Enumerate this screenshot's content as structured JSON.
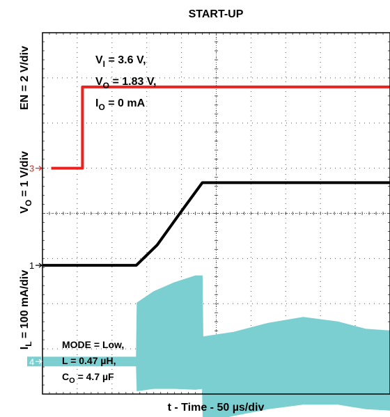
{
  "chart_data": {
    "type": "line",
    "title": "START-UP",
    "xlabel": "t - Time - 50 µs/div",
    "x_divisions": 10,
    "y_divisions": 8,
    "grid": true,
    "channels": [
      {
        "name": "EN",
        "ylabel": "EN = 2 V/div",
        "marker": "3",
        "color": "#e8231f",
        "ground_div": 5.0,
        "volts_per_div": 2,
        "unit": "V",
        "points": [
          [
            0.25,
            0
          ],
          [
            1.15,
            0
          ],
          [
            1.15,
            3.6
          ],
          [
            10.0,
            3.6
          ]
        ]
      },
      {
        "name": "VO",
        "ylabel": "VO = 1 V/div",
        "ylabel_main": "V",
        "ylabel_sub": "O",
        "ylabel_rest": " = 1 V/div",
        "marker": "1",
        "color": "#000000",
        "ground_div": 2.85,
        "volts_per_div": 1,
        "unit": "V",
        "points": [
          [
            0.0,
            0
          ],
          [
            1.15,
            0
          ],
          [
            2.7,
            0
          ],
          [
            3.3,
            0.45
          ],
          [
            4.0,
            1.2
          ],
          [
            4.6,
            1.83
          ],
          [
            10.0,
            1.83
          ]
        ]
      },
      {
        "name": "IL",
        "ylabel": "IL = 100 mA/div",
        "ylabel_main": "I",
        "ylabel_sub": "L",
        "ylabel_rest": " = 100 mA/div",
        "marker": "4",
        "color": "#7ccfd0",
        "ground_div": 0.72,
        "amps_per_div": 100,
        "unit": "mA",
        "envelope": [
          {
            "t": 0.0,
            "max": 10,
            "min": -10
          },
          {
            "t": 2.7,
            "max": 10,
            "min": -10
          },
          {
            "t": 2.72,
            "max": 130,
            "min": -65
          },
          {
            "t": 3.2,
            "max": 155,
            "min": -60
          },
          {
            "t": 3.8,
            "max": 175,
            "min": -60
          },
          {
            "t": 4.4,
            "max": 190,
            "min": -62
          },
          {
            "t": 4.6,
            "max": 190,
            "min": -60
          },
          {
            "t": 4.62,
            "max": 55,
            "min": -135
          },
          {
            "t": 5.5,
            "max": 65,
            "min": -120
          },
          {
            "t": 6.5,
            "max": 85,
            "min": -105
          },
          {
            "t": 7.5,
            "max": 98,
            "min": -95
          },
          {
            "t": 8.5,
            "max": 88,
            "min": -95
          },
          {
            "t": 9.3,
            "max": 72,
            "min": -105
          },
          {
            "t": 10.0,
            "max": 68,
            "min": -108
          }
        ]
      }
    ]
  },
  "annotations": {
    "top": {
      "vi": {
        "main": "V",
        "sub": "I",
        "rest": " = 3.6 V,"
      },
      "vo": {
        "main": "V",
        "sub": "O",
        "rest": " = 1.83 V,"
      },
      "io": {
        "main": "I",
        "sub": "O",
        "rest": " = 0 mA"
      }
    },
    "bottom": {
      "mode": "MODE = Low,",
      "l": "L = 0.47 µH,",
      "co": {
        "main": "C",
        "sub": "O",
        "rest": " = 4.7 µF"
      }
    }
  }
}
